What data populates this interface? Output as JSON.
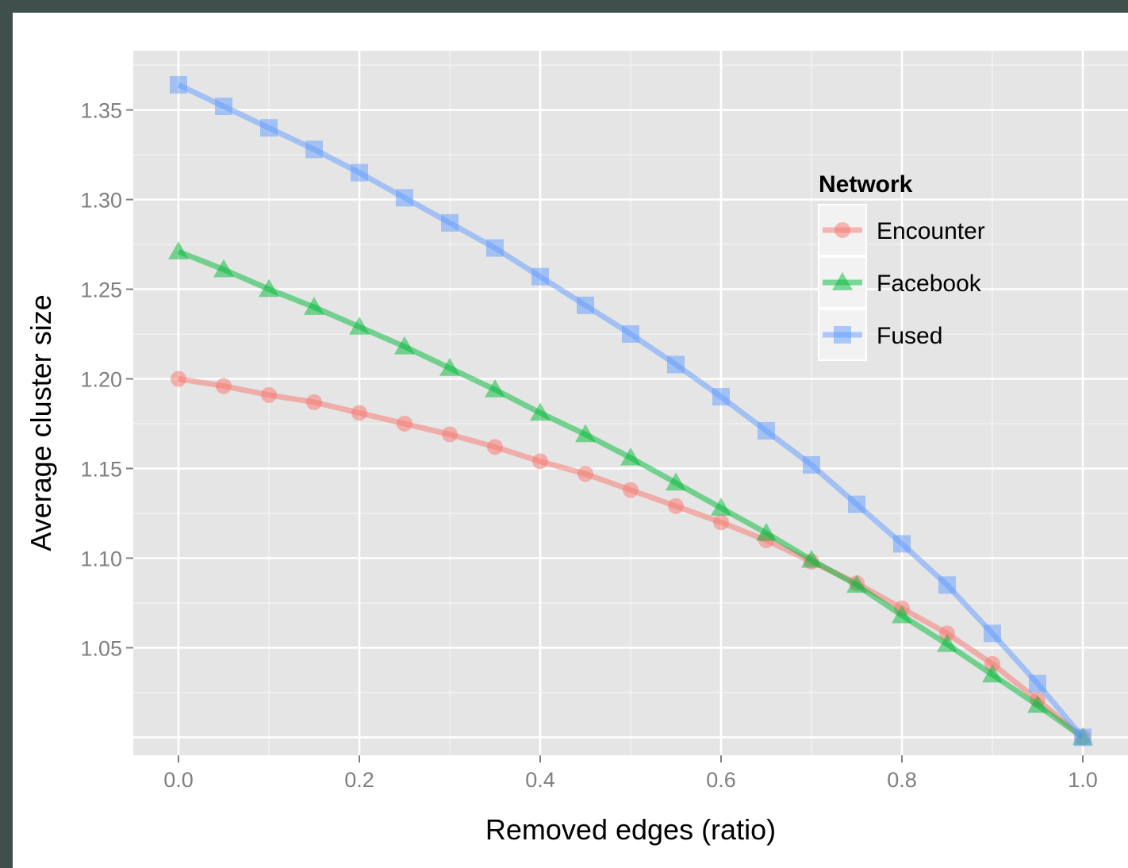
{
  "colors": {
    "encounter": "#F8766D",
    "facebook": "#00BA38",
    "fused": "#619CFF",
    "panel": "#E5E5E5",
    "grid": "#FFFFFF"
  },
  "chart_data": {
    "type": "line",
    "xlabel": "Removed edges (ratio)",
    "ylabel": "Average cluster size",
    "xlim": [
      -0.05,
      1.05
    ],
    "ylim": [
      0.99,
      1.383
    ],
    "x_ticks": [
      0.0,
      0.2,
      0.4,
      0.6,
      0.8,
      1.0
    ],
    "x_tick_labels": [
      "0.0",
      "0.2",
      "0.4",
      "0.6",
      "0.8",
      "1.0"
    ],
    "y_ticks": [
      1.05,
      1.1,
      1.15,
      1.2,
      1.25,
      1.3,
      1.35
    ],
    "y_tick_labels": [
      "1.05",
      "1.10",
      "1.15",
      "1.20",
      "1.25",
      "1.30",
      "1.35"
    ],
    "grid": true,
    "legend": {
      "title": "Network",
      "position": "right"
    },
    "x": [
      0.0,
      0.05,
      0.1,
      0.15,
      0.2,
      0.25,
      0.3,
      0.35,
      0.4,
      0.45,
      0.5,
      0.55,
      0.6,
      0.65,
      0.7,
      0.75,
      0.8,
      0.85,
      0.9,
      0.95,
      1.0
    ],
    "series": [
      {
        "name": "Encounter",
        "marker": "circle",
        "color": "#F8766D",
        "values": [
          1.2,
          1.196,
          1.191,
          1.187,
          1.181,
          1.175,
          1.169,
          1.162,
          1.154,
          1.147,
          1.138,
          1.129,
          1.12,
          1.11,
          1.098,
          1.086,
          1.072,
          1.058,
          1.041,
          1.021,
          1.0
        ]
      },
      {
        "name": "Facebook",
        "marker": "triangle",
        "color": "#00BA38",
        "values": [
          1.271,
          1.261,
          1.25,
          1.24,
          1.229,
          1.218,
          1.206,
          1.194,
          1.181,
          1.169,
          1.156,
          1.142,
          1.128,
          1.114,
          1.099,
          1.085,
          1.068,
          1.052,
          1.035,
          1.018,
          1.0
        ]
      },
      {
        "name": "Fused",
        "marker": "square",
        "color": "#619CFF",
        "values": [
          1.364,
          1.352,
          1.34,
          1.328,
          1.315,
          1.301,
          1.287,
          1.273,
          1.257,
          1.241,
          1.225,
          1.208,
          1.19,
          1.171,
          1.152,
          1.13,
          1.108,
          1.085,
          1.058,
          1.03,
          1.0
        ]
      }
    ]
  }
}
